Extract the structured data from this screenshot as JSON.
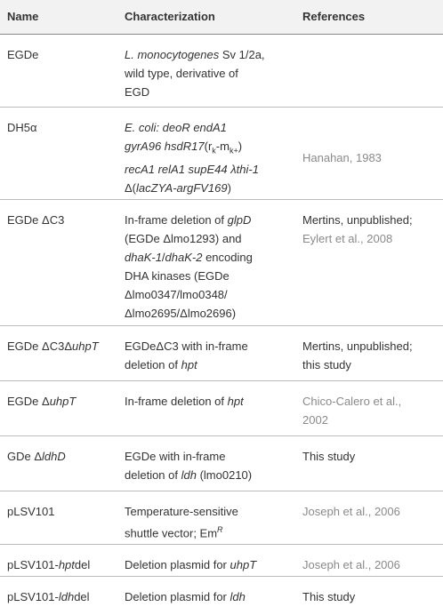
{
  "table": {
    "header": [
      "Name",
      "Characterization",
      "References"
    ],
    "rows": [
      [
        {
          "lines": [
            [
              "EGDe"
            ]
          ]
        },
        {
          "lines": [
            [
              {
                "text": "L. monocytogenes",
                "style": "italic"
              },
              " Sv 1/2a,"
            ],
            [
              "wild type, derivative of"
            ],
            [
              "EGD"
            ]
          ]
        },
        {
          "lines": []
        }
      ],
      [
        {
          "lines": [
            [
              "DH5α"
            ]
          ]
        },
        {
          "lines": [
            [
              {
                "text": "E. coli: deoR endA1",
                "style": "italic"
              }
            ],
            [
              {
                "text": "gyrA96 hsdR17",
                "style": "italic"
              },
              "(r",
              {
                "text": "k",
                "style": "sub"
              },
              "-m",
              {
                "text": "k+",
                "style": "sub"
              },
              ")"
            ],
            [
              {
                "text": "recA1 relA1 supE44 λthi-1",
                "style": "italic"
              }
            ],
            [
              "Δ(",
              {
                "text": "lacZYA-argFV169",
                "style": "italic"
              },
              ")"
            ]
          ]
        },
        {
          "lines": [
            [
              {
                "text": "Hanahan, 1983",
                "style": "cite"
              }
            ]
          ],
          "valign": "middle"
        }
      ],
      [
        {
          "lines": [
            [
              "EGDe ΔC3"
            ]
          ]
        },
        {
          "lines": [
            [
              "In-frame deletion of ",
              {
                "text": "glpD",
                "style": "italic"
              }
            ],
            [
              "(EGDe Δlmo1293) and"
            ],
            [
              {
                "text": "dhaK-1",
                "style": "italic"
              },
              "/",
              {
                "text": "dhaK-2",
                "style": "italic"
              },
              " encoding"
            ],
            [
              "DHA kinases (EGDe"
            ],
            [
              "Δlmo0347/lmo0348/"
            ],
            [
              "Δlmo2695/Δlmo2696)"
            ]
          ]
        },
        {
          "lines": [
            [
              "Mertins, unpublished;"
            ],
            [
              {
                "text": "Eylert et al., 2008",
                "style": "cite"
              }
            ]
          ]
        }
      ],
      [
        {
          "lines": [
            [
              "EGDe ΔC3Δ",
              {
                "text": "uhpT",
                "style": "italic"
              }
            ]
          ]
        },
        {
          "lines": [
            [
              "EGDeΔC3 with in-frame"
            ],
            [
              "deletion of ",
              {
                "text": "hpt",
                "style": "italic"
              }
            ]
          ]
        },
        {
          "lines": [
            [
              "Mertins, unpublished;"
            ],
            [
              "this study"
            ]
          ]
        }
      ],
      [
        {
          "lines": [
            [
              "EGDe Δ",
              {
                "text": "uhpT",
                "style": "italic"
              }
            ]
          ]
        },
        {
          "lines": [
            [
              "In-frame deletion of ",
              {
                "text": "hpt",
                "style": "italic"
              }
            ]
          ]
        },
        {
          "lines": [
            [
              {
                "text": "Chico-Calero et al.,",
                "style": "cite"
              }
            ],
            [
              {
                "text": "2002",
                "style": "cite"
              }
            ]
          ]
        }
      ],
      [
        {
          "lines": [
            [
              "GDe Δ",
              {
                "text": "ldhD",
                "style": "italic"
              }
            ]
          ]
        },
        {
          "lines": [
            [
              "EGDe with in-frame"
            ],
            [
              "deletion of ",
              {
                "text": "ldh",
                "style": "italic"
              },
              " (lmo0210)"
            ]
          ]
        },
        {
          "lines": [
            [
              "This study"
            ]
          ]
        }
      ],
      [
        {
          "lines": [
            [
              "pLSV101"
            ]
          ]
        },
        {
          "lines": [
            [
              "Temperature-sensitive"
            ],
            [
              "shuttle vector; Em",
              {
                "text": "R",
                "style": "sup"
              }
            ]
          ]
        },
        {
          "lines": [
            [
              {
                "text": "Joseph et al., 2006",
                "style": "cite"
              }
            ]
          ]
        }
      ],
      [
        {
          "lines": [
            [
              "pLSV101-",
              {
                "text": "hpt",
                "style": "italic"
              },
              "del"
            ]
          ]
        },
        {
          "lines": [
            [
              "Deletion plasmid for ",
              {
                "text": "uhpT",
                "style": "italic"
              }
            ]
          ]
        },
        {
          "lines": [
            [
              {
                "text": "Joseph et al., 2006",
                "style": "cite"
              }
            ]
          ]
        }
      ],
      [
        {
          "lines": [
            [
              "pLSV101-",
              {
                "text": "ldh",
                "style": "italic"
              },
              "del"
            ]
          ]
        },
        {
          "lines": [
            [
              "Deletion plasmid for ",
              {
                "text": "ldh",
                "style": "italic"
              }
            ]
          ]
        },
        {
          "lines": [
            [
              "This study"
            ]
          ]
        }
      ]
    ]
  }
}
